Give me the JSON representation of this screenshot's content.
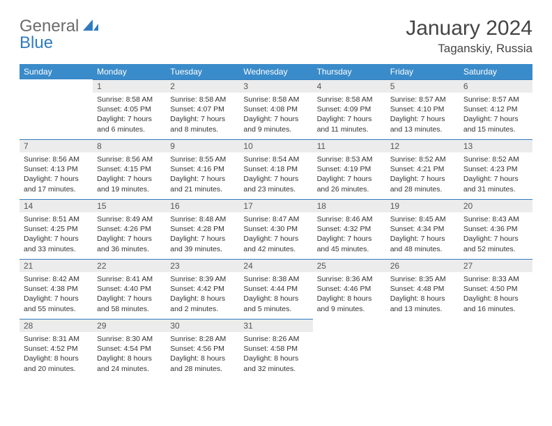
{
  "logo": {
    "part1": "General",
    "part2": "Blue"
  },
  "title": "January 2024",
  "location": "Taganskiy, Russia",
  "colors": {
    "header_bg": "#3a8bc9",
    "accent": "#2f7bbf",
    "daynum_bg": "#ececec",
    "text": "#333333",
    "logo_gray": "#6b6b6b"
  },
  "weekdays": [
    "Sunday",
    "Monday",
    "Tuesday",
    "Wednesday",
    "Thursday",
    "Friday",
    "Saturday"
  ],
  "weeks": [
    [
      null,
      {
        "n": "1",
        "sunrise": "8:58 AM",
        "sunset": "4:05 PM",
        "daylight": "7 hours and 6 minutes."
      },
      {
        "n": "2",
        "sunrise": "8:58 AM",
        "sunset": "4:07 PM",
        "daylight": "7 hours and 8 minutes."
      },
      {
        "n": "3",
        "sunrise": "8:58 AM",
        "sunset": "4:08 PM",
        "daylight": "7 hours and 9 minutes."
      },
      {
        "n": "4",
        "sunrise": "8:58 AM",
        "sunset": "4:09 PM",
        "daylight": "7 hours and 11 minutes."
      },
      {
        "n": "5",
        "sunrise": "8:57 AM",
        "sunset": "4:10 PM",
        "daylight": "7 hours and 13 minutes."
      },
      {
        "n": "6",
        "sunrise": "8:57 AM",
        "sunset": "4:12 PM",
        "daylight": "7 hours and 15 minutes."
      }
    ],
    [
      {
        "n": "7",
        "sunrise": "8:56 AM",
        "sunset": "4:13 PM",
        "daylight": "7 hours and 17 minutes."
      },
      {
        "n": "8",
        "sunrise": "8:56 AM",
        "sunset": "4:15 PM",
        "daylight": "7 hours and 19 minutes."
      },
      {
        "n": "9",
        "sunrise": "8:55 AM",
        "sunset": "4:16 PM",
        "daylight": "7 hours and 21 minutes."
      },
      {
        "n": "10",
        "sunrise": "8:54 AM",
        "sunset": "4:18 PM",
        "daylight": "7 hours and 23 minutes."
      },
      {
        "n": "11",
        "sunrise": "8:53 AM",
        "sunset": "4:19 PM",
        "daylight": "7 hours and 26 minutes."
      },
      {
        "n": "12",
        "sunrise": "8:52 AM",
        "sunset": "4:21 PM",
        "daylight": "7 hours and 28 minutes."
      },
      {
        "n": "13",
        "sunrise": "8:52 AM",
        "sunset": "4:23 PM",
        "daylight": "7 hours and 31 minutes."
      }
    ],
    [
      {
        "n": "14",
        "sunrise": "8:51 AM",
        "sunset": "4:25 PM",
        "daylight": "7 hours and 33 minutes."
      },
      {
        "n": "15",
        "sunrise": "8:49 AM",
        "sunset": "4:26 PM",
        "daylight": "7 hours and 36 minutes."
      },
      {
        "n": "16",
        "sunrise": "8:48 AM",
        "sunset": "4:28 PM",
        "daylight": "7 hours and 39 minutes."
      },
      {
        "n": "17",
        "sunrise": "8:47 AM",
        "sunset": "4:30 PM",
        "daylight": "7 hours and 42 minutes."
      },
      {
        "n": "18",
        "sunrise": "8:46 AM",
        "sunset": "4:32 PM",
        "daylight": "7 hours and 45 minutes."
      },
      {
        "n": "19",
        "sunrise": "8:45 AM",
        "sunset": "4:34 PM",
        "daylight": "7 hours and 48 minutes."
      },
      {
        "n": "20",
        "sunrise": "8:43 AM",
        "sunset": "4:36 PM",
        "daylight": "7 hours and 52 minutes."
      }
    ],
    [
      {
        "n": "21",
        "sunrise": "8:42 AM",
        "sunset": "4:38 PM",
        "daylight": "7 hours and 55 minutes."
      },
      {
        "n": "22",
        "sunrise": "8:41 AM",
        "sunset": "4:40 PM",
        "daylight": "7 hours and 58 minutes."
      },
      {
        "n": "23",
        "sunrise": "8:39 AM",
        "sunset": "4:42 PM",
        "daylight": "8 hours and 2 minutes."
      },
      {
        "n": "24",
        "sunrise": "8:38 AM",
        "sunset": "4:44 PM",
        "daylight": "8 hours and 5 minutes."
      },
      {
        "n": "25",
        "sunrise": "8:36 AM",
        "sunset": "4:46 PM",
        "daylight": "8 hours and 9 minutes."
      },
      {
        "n": "26",
        "sunrise": "8:35 AM",
        "sunset": "4:48 PM",
        "daylight": "8 hours and 13 minutes."
      },
      {
        "n": "27",
        "sunrise": "8:33 AM",
        "sunset": "4:50 PM",
        "daylight": "8 hours and 16 minutes."
      }
    ],
    [
      {
        "n": "28",
        "sunrise": "8:31 AM",
        "sunset": "4:52 PM",
        "daylight": "8 hours and 20 minutes."
      },
      {
        "n": "29",
        "sunrise": "8:30 AM",
        "sunset": "4:54 PM",
        "daylight": "8 hours and 24 minutes."
      },
      {
        "n": "30",
        "sunrise": "8:28 AM",
        "sunset": "4:56 PM",
        "daylight": "8 hours and 28 minutes."
      },
      {
        "n": "31",
        "sunrise": "8:26 AM",
        "sunset": "4:58 PM",
        "daylight": "8 hours and 32 minutes."
      },
      null,
      null,
      null
    ]
  ],
  "labels": {
    "sunrise": "Sunrise:",
    "sunset": "Sunset:",
    "daylight": "Daylight:"
  }
}
